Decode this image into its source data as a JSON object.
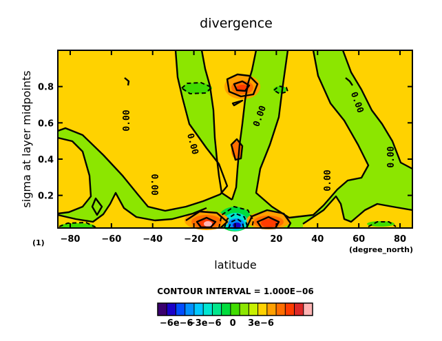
{
  "chart_data": {
    "type": "heatmap",
    "title": "divergence",
    "xlabel": "latitude",
    "ylabel": "sigma at layer midpoints",
    "x_unit": "(degree_north)",
    "frame_label": "(1)",
    "xlim": [
      -86,
      86
    ],
    "ylim": [
      1.0,
      0.02
    ],
    "x_ticks": [
      -80,
      -60,
      -40,
      -20,
      0,
      20,
      40,
      60,
      80
    ],
    "x_tick_labels": [
      "−80",
      "−60",
      "−40",
      "−20",
      "0",
      "20",
      "40",
      "60",
      "80"
    ],
    "y_ticks": [
      0.2,
      0.4,
      0.6,
      0.8
    ],
    "y_tick_labels": [
      "0.2",
      "0.4",
      "0.6",
      "0.8"
    ],
    "contour_label": "0.00",
    "contour_interval_text": "CONTOUR INTERVAL = 1.000E−06",
    "colorbar": {
      "colors": [
        "#3a006e",
        "#1a00c8",
        "#004cff",
        "#0090ff",
        "#00c8ff",
        "#00e6d2",
        "#00e68c",
        "#00dc3c",
        "#40dc00",
        "#8ce600",
        "#c8f000",
        "#ffd200",
        "#ffa000",
        "#ff6e00",
        "#ff3c00",
        "#dc2828",
        "#ffb4b4"
      ],
      "tick_labels": [
        "−6e−6",
        "−3e−6",
        "0",
        "3e−6"
      ],
      "tick_values": [
        -6e-06,
        -3e-06,
        0,
        3e-06
      ]
    }
  }
}
